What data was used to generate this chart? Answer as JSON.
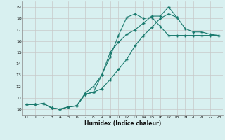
{
  "xlabel": "Humidex (Indice chaleur)",
  "ylabel": "",
  "background_color": "#d8f0f0",
  "grid_color": "#c8c8c8",
  "line_color": "#1a7a6e",
  "xlim": [
    -0.5,
    23.5
  ],
  "ylim": [
    9.5,
    19.5
  ],
  "xticks": [
    0,
    1,
    2,
    3,
    4,
    5,
    6,
    7,
    8,
    9,
    10,
    11,
    12,
    13,
    14,
    15,
    16,
    17,
    18,
    19,
    20,
    21,
    22,
    23
  ],
  "yticks": [
    10,
    11,
    12,
    13,
    14,
    15,
    16,
    17,
    18,
    19
  ],
  "line1_x": [
    0,
    1,
    2,
    3,
    4,
    5,
    6,
    7,
    8,
    9,
    10,
    11,
    12,
    13,
    14,
    15,
    16,
    17,
    18,
    19,
    20,
    21,
    22,
    23
  ],
  "line1_y": [
    10.4,
    10.4,
    10.5,
    10.1,
    10.0,
    10.2,
    10.3,
    11.3,
    11.5,
    11.8,
    12.6,
    13.5,
    14.4,
    15.6,
    16.5,
    17.2,
    18.0,
    18.4,
    18.1,
    17.1,
    16.8,
    16.8,
    16.6,
    16.5
  ],
  "line2_x": [
    0,
    1,
    2,
    3,
    4,
    5,
    6,
    7,
    8,
    9,
    10,
    11,
    12,
    13,
    14,
    15,
    16,
    17,
    18
  ],
  "line2_y": [
    10.4,
    10.4,
    10.5,
    10.1,
    10.0,
    10.2,
    10.3,
    11.3,
    11.5,
    13.0,
    15.0,
    15.9,
    16.6,
    17.0,
    17.6,
    18.2,
    18.2,
    19.0,
    18.1
  ],
  "line3_x": [
    0,
    1,
    2,
    3,
    4,
    5,
    6,
    7,
    8,
    9,
    10,
    11,
    12,
    13,
    14,
    15,
    16,
    17,
    18,
    19,
    20,
    21,
    22,
    23
  ],
  "line3_y": [
    10.4,
    10.4,
    10.5,
    10.1,
    10.0,
    10.2,
    10.3,
    11.4,
    12.0,
    13.0,
    14.6,
    16.5,
    18.1,
    18.4,
    18.0,
    18.1,
    17.3,
    16.5,
    16.5,
    16.5,
    16.5,
    16.5,
    16.5,
    16.5
  ]
}
